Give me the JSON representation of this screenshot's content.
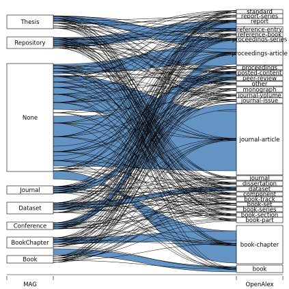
{
  "chart_data": {
    "type": "alluvial",
    "axes": [
      "MAG",
      "OpenAlex"
    ],
    "left_nodes": [
      "Thesis",
      "Repository",
      "None",
      "Journal",
      "Dataset",
      "Conference",
      "BookChapter",
      "Book"
    ],
    "right_nodes": [
      "standard",
      "report-series",
      "report",
      "reference-entry",
      "reference-book",
      "proceedings-series",
      "proceedings-article",
      "proceedings",
      "posted-content",
      "peer-review",
      "other",
      "monograph",
      "journal-volume",
      "journal-issue",
      "journal-article",
      "journal",
      "dissertation",
      "dataset",
      "component",
      "book-track",
      "book-set",
      "book-series",
      "book-section",
      "book-part",
      "book-chapter",
      "book"
    ],
    "flow_color": "#6494c4"
  }
}
